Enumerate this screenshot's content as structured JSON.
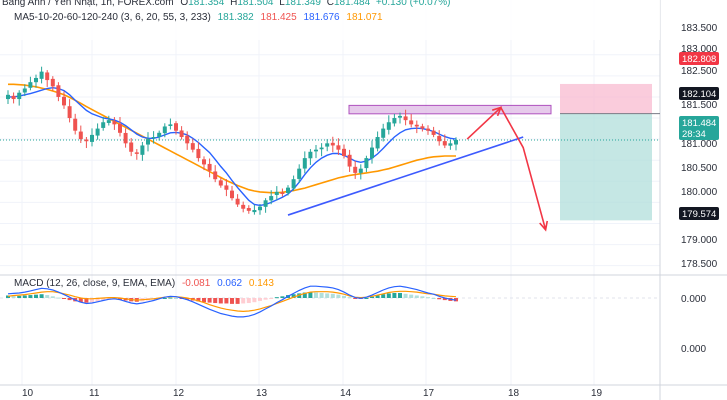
{
  "header": {
    "symbol": "Bảng Anh / Yên Nhật, 1h, FOREX.com",
    "ohlc": [
      {
        "k": "O",
        "v": "181.354"
      },
      {
        "k": "H",
        "v": "181.504"
      },
      {
        "k": "L",
        "v": "181.349"
      },
      {
        "k": "C",
        "v": "181.484"
      }
    ],
    "change": "+0.130 (+0.07%)",
    "ma_label": "MA5-10-20-60-120-240 (3, 6, 20, 55, 3, 233)",
    "ma_values": [
      "181.382",
      "181.425",
      "181.676",
      "181.071"
    ],
    "macd_label": "MACD (12, 26, close, 9, EMA, EMA)",
    "macd_values": [
      "-0.081",
      "0.062",
      "0.143"
    ]
  },
  "colors": {
    "up": "#26a69a",
    "down": "#ef5350",
    "ma_fast": "#2962ff",
    "ma_slow": "#ff9800",
    "trend": "#3d5afe",
    "arrow": "#f23645",
    "resistance_fill": "#e1bee7",
    "resistance_stroke": "#9c27b0",
    "loss_zone": "#f8bbd0",
    "profit_zone": "#b2dfdb"
  },
  "chart_data": {
    "type": "candlestick",
    "title": "Bảng Anh / Yên Nhật, 1h, FOREX.com",
    "x_tick_labels": [
      "10",
      "11",
      "12",
      "13",
      "14",
      "17",
      "18",
      "19"
    ],
    "price_axis": {
      "tick_labels": [
        "183.500",
        "183.000",
        "182.500",
        "181.500",
        "181.000",
        "180.500",
        "180.000",
        "179.000",
        "178.500"
      ],
      "range": [
        178.35,
        183.85
      ]
    },
    "price_badges": [
      {
        "value": "182.808",
        "kind": "stop-loss"
      },
      {
        "value": "182.104",
        "kind": "entry"
      },
      {
        "value": "181.484",
        "kind": "last-price",
        "countdown": "28:34"
      },
      {
        "value": "179.574",
        "kind": "take-profit"
      }
    ],
    "close": [
      182.55,
      182.45,
      182.6,
      182.7,
      182.85,
      182.95,
      183.1,
      182.9,
      182.75,
      182.5,
      182.3,
      182.0,
      181.7,
      181.5,
      181.45,
      181.6,
      181.75,
      181.9,
      181.95,
      181.85,
      181.65,
      181.4,
      181.2,
      181.15,
      181.35,
      181.5,
      181.55,
      181.65,
      181.8,
      181.85,
      181.7,
      181.55,
      181.4,
      181.25,
      181.05,
      180.9,
      180.75,
      180.55,
      180.4,
      180.3,
      180.1,
      179.95,
      179.85,
      179.8,
      179.82,
      179.9,
      180.05,
      180.15,
      180.25,
      180.2,
      180.35,
      180.55,
      180.8,
      181.05,
      181.2,
      181.25,
      181.3,
      181.4,
      181.35,
      181.25,
      181.1,
      180.85,
      180.7,
      180.8,
      181.05,
      181.3,
      181.55,
      181.75,
      181.9,
      182.0,
      182.05,
      181.95,
      181.85,
      181.8,
      181.75,
      181.7,
      181.6,
      181.45,
      181.35,
      181.4,
      181.48
    ],
    "ma_fast": [
      182.5,
      182.5,
      182.52,
      182.55,
      182.58,
      182.62,
      182.66,
      182.7,
      182.72,
      182.7,
      182.65,
      182.55,
      182.42,
      182.3,
      182.18,
      182.1,
      182.05,
      182.0,
      181.98,
      181.95,
      181.9,
      181.82,
      181.72,
      181.62,
      181.55,
      181.52,
      181.52,
      181.55,
      181.6,
      181.65,
      181.66,
      181.64,
      181.6,
      181.52,
      181.42,
      181.3,
      181.18,
      181.02,
      180.85,
      180.7,
      180.52,
      180.35,
      180.2,
      180.05,
      179.95,
      179.93,
      179.95,
      180.0,
      180.06,
      180.12,
      180.2,
      180.32,
      180.48,
      180.66,
      180.82,
      180.95,
      181.05,
      181.12,
      181.16,
      181.16,
      181.12,
      181.05,
      180.98,
      180.95,
      180.98,
      181.05,
      181.15,
      181.28,
      181.42,
      181.55,
      181.65,
      181.72,
      181.75,
      181.76,
      181.75,
      181.72,
      181.68,
      181.62,
      181.56,
      181.52,
      181.5
    ],
    "ma_slow": [
      182.8,
      182.8,
      182.79,
      182.78,
      182.76,
      182.74,
      182.71,
      182.68,
      182.64,
      182.6,
      182.55,
      182.49,
      182.42,
      182.35,
      182.27,
      182.2,
      182.13,
      182.06,
      181.99,
      181.92,
      181.85,
      181.78,
      181.71,
      181.64,
      181.57,
      181.5,
      181.43,
      181.36,
      181.29,
      181.22,
      181.15,
      181.08,
      181.01,
      180.94,
      180.87,
      180.8,
      180.73,
      180.66,
      180.59,
      180.52,
      180.46,
      180.4,
      180.35,
      180.3,
      180.27,
      180.25,
      180.24,
      180.23,
      180.23,
      180.24,
      180.26,
      180.28,
      180.31,
      180.34,
      180.38,
      180.42,
      180.46,
      180.5,
      180.54,
      180.58,
      180.61,
      180.64,
      180.66,
      180.68,
      180.7,
      180.72,
      180.74,
      180.77,
      180.8,
      180.84,
      180.88,
      180.92,
      180.96,
      181.0,
      181.03,
      181.06,
      181.08,
      181.09,
      181.1,
      181.1,
      181.1
    ],
    "macd": {
      "axis_tick_labels": [
        "0.000",
        "0.000"
      ],
      "histogram": [
        0.06,
        0.05,
        0.05,
        0.06,
        0.07,
        0.08,
        0.09,
        0.07,
        0.04,
        0.01,
        -0.02,
        -0.05,
        -0.08,
        -0.1,
        -0.11,
        -0.1,
        -0.08,
        -0.06,
        -0.04,
        -0.03,
        -0.04,
        -0.06,
        -0.08,
        -0.09,
        -0.08,
        -0.06,
        -0.04,
        -0.02,
        0.0,
        0.01,
        0.0,
        -0.02,
        -0.04,
        -0.06,
        -0.08,
        -0.1,
        -0.11,
        -0.12,
        -0.13,
        -0.13,
        -0.14,
        -0.14,
        -0.13,
        -0.12,
        -0.1,
        -0.07,
        -0.04,
        -0.01,
        0.02,
        0.04,
        0.07,
        0.09,
        0.11,
        0.13,
        0.14,
        0.13,
        0.12,
        0.11,
        0.1,
        0.08,
        0.05,
        0.02,
        -0.01,
        -0.02,
        0.0,
        0.03,
        0.06,
        0.09,
        0.11,
        0.12,
        0.12,
        0.1,
        0.08,
        0.06,
        0.04,
        0.02,
        0.0,
        -0.03,
        -0.05,
        -0.07,
        -0.08
      ],
      "macd_line": [
        0.1,
        0.11,
        0.12,
        0.14,
        0.17,
        0.2,
        0.23,
        0.22,
        0.19,
        0.14,
        0.08,
        0.02,
        -0.05,
        -0.1,
        -0.13,
        -0.12,
        -0.09,
        -0.06,
        -0.03,
        -0.02,
        -0.04,
        -0.08,
        -0.12,
        -0.14,
        -0.12,
        -0.09,
        -0.06,
        -0.02,
        0.02,
        0.04,
        0.03,
        0.0,
        -0.04,
        -0.09,
        -0.15,
        -0.21,
        -0.27,
        -0.32,
        -0.37,
        -0.4,
        -0.43,
        -0.45,
        -0.45,
        -0.43,
        -0.39,
        -0.33,
        -0.26,
        -0.19,
        -0.11,
        -0.04,
        0.04,
        0.11,
        0.18,
        0.24,
        0.28,
        0.28,
        0.27,
        0.26,
        0.24,
        0.2,
        0.14,
        0.07,
        0.01,
        -0.01,
        0.02,
        0.07,
        0.13,
        0.19,
        0.24,
        0.27,
        0.28,
        0.26,
        0.23,
        0.2,
        0.16,
        0.12,
        0.09,
        0.04,
        0.0,
        -0.03,
        -0.05
      ],
      "signal_line": [
        0.04,
        0.06,
        0.07,
        0.08,
        0.1,
        0.12,
        0.14,
        0.15,
        0.15,
        0.13,
        0.1,
        0.07,
        0.03,
        0.0,
        -0.02,
        -0.02,
        -0.01,
        0.0,
        0.01,
        0.01,
        0.0,
        -0.02,
        -0.04,
        -0.05,
        -0.04,
        -0.03,
        -0.02,
        0.0,
        0.02,
        0.03,
        0.03,
        0.02,
        0.0,
        -0.03,
        -0.07,
        -0.11,
        -0.16,
        -0.2,
        -0.24,
        -0.27,
        -0.29,
        -0.31,
        -0.32,
        -0.31,
        -0.29,
        -0.26,
        -0.22,
        -0.18,
        -0.13,
        -0.08,
        -0.03,
        0.02,
        0.07,
        0.11,
        0.14,
        0.15,
        0.15,
        0.15,
        0.14,
        0.12,
        0.09,
        0.05,
        0.02,
        0.01,
        0.02,
        0.04,
        0.07,
        0.1,
        0.13,
        0.15,
        0.16,
        0.16,
        0.15,
        0.14,
        0.12,
        0.1,
        0.09,
        0.07,
        0.05,
        0.04,
        0.03
      ]
    },
    "drawings": {
      "resistance_zone": [
        182.1,
        182.3
      ],
      "trendline": {
        "from_bar": 50,
        "from_price": 179.7,
        "to_bar": 92,
        "to_price": 181.55
      },
      "projection": [
        {
          "bar": 82,
          "price": 181.5
        },
        {
          "bar": 88,
          "price": 182.25
        },
        {
          "bar": 92,
          "price": 181.3
        },
        {
          "bar": 96,
          "price": 179.35
        }
      ],
      "position": {
        "stop": 182.808,
        "entry": 182.104,
        "target": 179.574
      }
    }
  }
}
